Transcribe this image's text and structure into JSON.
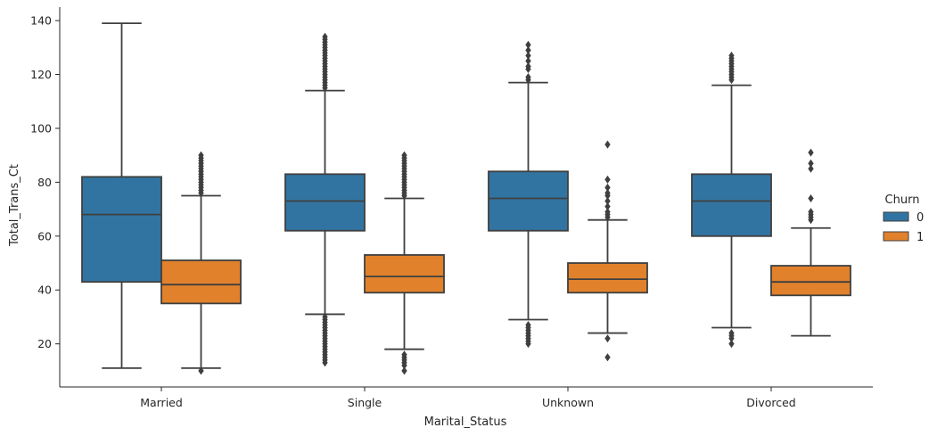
{
  "chart_data": {
    "type": "box",
    "xlabel": "Marital_Status",
    "ylabel": "Total_Trans_Ct",
    "ylim": [
      4,
      145
    ],
    "yticks": [
      20,
      40,
      60,
      80,
      100,
      120,
      140
    ],
    "grid": false,
    "categories": [
      "Married",
      "Single",
      "Unknown",
      "Divorced"
    ],
    "legend": {
      "title": "Churn",
      "placement": "right"
    },
    "series": [
      {
        "name": "0",
        "color": "#3274a1",
        "boxes": [
          {
            "whisker_low": 11,
            "q1": 43,
            "median": 68,
            "q3": 82,
            "whisker_high": 139,
            "outliers": []
          },
          {
            "whisker_low": 31,
            "q1": 62,
            "median": 73,
            "q3": 83,
            "whisker_high": 114,
            "outliers": [
              13,
              14,
              15,
              16,
              17,
              18,
              19,
              20,
              21,
              22,
              23,
              24,
              25,
              26,
              27,
              28,
              29,
              30,
              115,
              116,
              117,
              118,
              119,
              120,
              121,
              122,
              123,
              124,
              125,
              126,
              127,
              128,
              129,
              130,
              131,
              132,
              133,
              134
            ]
          },
          {
            "whisker_low": 29,
            "q1": 62,
            "median": 74,
            "q3": 84,
            "whisker_high": 117,
            "outliers": [
              20,
              21,
              22,
              23,
              24,
              25,
              26,
              27,
              118,
              119,
              122,
              123,
              125,
              127,
              129,
              131
            ]
          },
          {
            "whisker_low": 26,
            "q1": 60,
            "median": 73,
            "q3": 83,
            "whisker_high": 116,
            "outliers": [
              20,
              22,
              23,
              24,
              118,
              119,
              120,
              121,
              122,
              123,
              124,
              125,
              126,
              127
            ]
          }
        ]
      },
      {
        "name": "1",
        "color": "#e1812c",
        "boxes": [
          {
            "whisker_low": 11,
            "q1": 35,
            "median": 42,
            "q3": 51,
            "whisker_high": 75,
            "outliers": [
              10,
              76,
              77,
              78,
              79,
              80,
              81,
              82,
              83,
              84,
              85,
              86,
              87,
              88,
              89,
              90
            ]
          },
          {
            "whisker_low": 18,
            "q1": 39,
            "median": 45,
            "q3": 53,
            "whisker_high": 74,
            "outliers": [
              10,
              12,
              13,
              14,
              15,
              16,
              75,
              76,
              77,
              78,
              79,
              80,
              81,
              82,
              83,
              84,
              85,
              86,
              87,
              88,
              89,
              90
            ]
          },
          {
            "whisker_low": 24,
            "q1": 39,
            "median": 44,
            "q3": 50,
            "whisker_high": 66,
            "outliers": [
              15,
              22,
              67,
              68,
              69,
              71,
              73,
              75,
              76,
              78,
              81,
              94
            ]
          },
          {
            "whisker_low": 23,
            "q1": 38,
            "median": 43,
            "q3": 49,
            "whisker_high": 63,
            "outliers": [
              66,
              67,
              68,
              69,
              74,
              85,
              87,
              91
            ]
          }
        ]
      }
    ]
  }
}
